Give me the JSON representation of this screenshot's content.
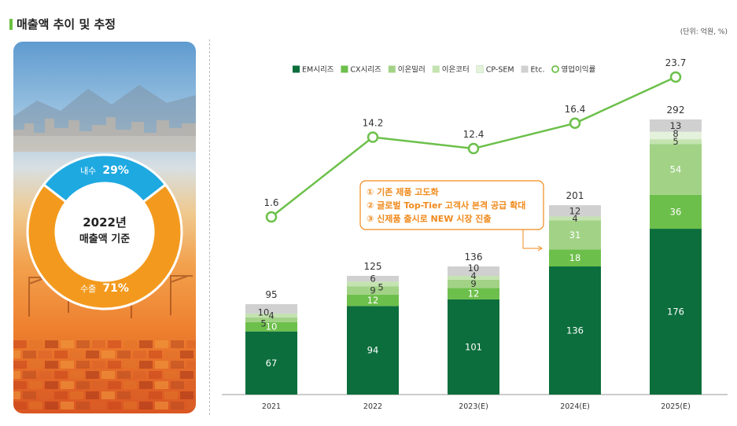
{
  "page": {
    "title": "매출액 추이 및 추정",
    "unit_note": "(단위: 억원, %)"
  },
  "donut": {
    "center_line1": "2022년",
    "center_line2": "매출액 기준",
    "segments": [
      {
        "label": "내수",
        "value": 29,
        "value_text": "29%",
        "color": "#1fa9e1"
      },
      {
        "label": "수출",
        "value": 71,
        "value_text": "71%",
        "color": "#f39a1e"
      }
    ]
  },
  "callout": {
    "lines": [
      "① 기존 제품 고도화",
      "② 글로벌 Top-Tier 고객사 본격 공급 확대",
      "③ 신제품 출시로 NEW 시장 진출"
    ],
    "color": "#f08a1c"
  },
  "chart_data": {
    "type": "bar",
    "stacked": true,
    "categories": [
      "2021",
      "2022",
      "2023(E)",
      "2024(E)",
      "2025(E)"
    ],
    "series": [
      {
        "name": "EM시리즈",
        "values": [
          67,
          94,
          101,
          136,
          176
        ],
        "color": "#0b6e3c"
      },
      {
        "name": "CX시리즈",
        "values": [
          10,
          12,
          12,
          18,
          36
        ],
        "color": "#6dbf4b"
      },
      {
        "name": "이온밀러",
        "values": [
          5,
          9,
          9,
          31,
          54
        ],
        "color": "#a2d286"
      },
      {
        "name": "이온코터",
        "values": [
          4,
          5,
          4,
          4,
          5
        ],
        "color": "#c4e3b0"
      },
      {
        "name": "CP-SEM",
        "values": [
          null,
          null,
          null,
          null,
          8
        ],
        "color": "#e4f2dc"
      },
      {
        "name": "Etc.",
        "values": [
          10,
          6,
          10,
          12,
          13
        ],
        "color": "#d0d0d0"
      }
    ],
    "totals": [
      95,
      125,
      136,
      201,
      292
    ],
    "line_series": {
      "name": "영업이익률",
      "values": [
        1.6,
        14.2,
        12.4,
        16.4,
        23.7
      ],
      "color": "#6cc04a"
    },
    "ylim": [
      0,
      300
    ],
    "line_ylim": [
      -5,
      25
    ],
    "legend_position": "top"
  }
}
